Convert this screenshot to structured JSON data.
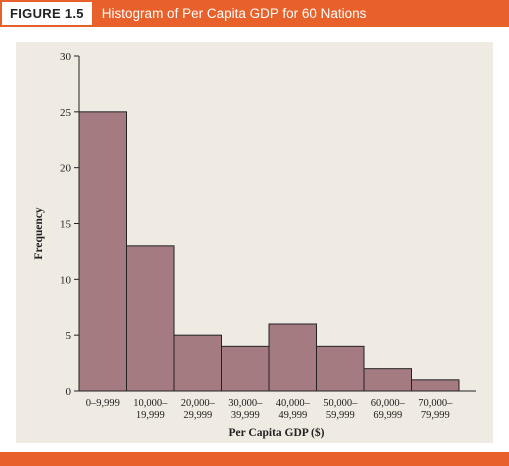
{
  "figure": {
    "label": "FIGURE 1.5",
    "title": "Histogram of Per Capita GDP for 60 Nations"
  },
  "colors": {
    "accent": "#e8602a",
    "panel": "#efeae2",
    "bar_fill": "#a47b80",
    "bar_stroke": "#222222"
  },
  "chart_data": {
    "type": "bar",
    "title": "Histogram of Per Capita GDP for 60 Nations",
    "xlabel": "Per Capita GDP ($)",
    "ylabel": "Frequency",
    "ylim": [
      0,
      30
    ],
    "yticks": [
      0,
      5,
      10,
      15,
      20,
      25,
      30
    ],
    "categories": [
      [
        "0–9,999",
        ""
      ],
      [
        "10,000–",
        "19,999"
      ],
      [
        "20,000–",
        "29,999"
      ],
      [
        "30,000–",
        "39,999"
      ],
      [
        "40,000–",
        "49,999"
      ],
      [
        "50,000–",
        "59,999"
      ],
      [
        "60,000–",
        "69,999"
      ],
      [
        "70,000–",
        "79,999"
      ]
    ],
    "values": [
      25,
      13,
      5,
      4,
      6,
      4,
      2,
      1
    ],
    "grid": false,
    "legend": "none"
  }
}
